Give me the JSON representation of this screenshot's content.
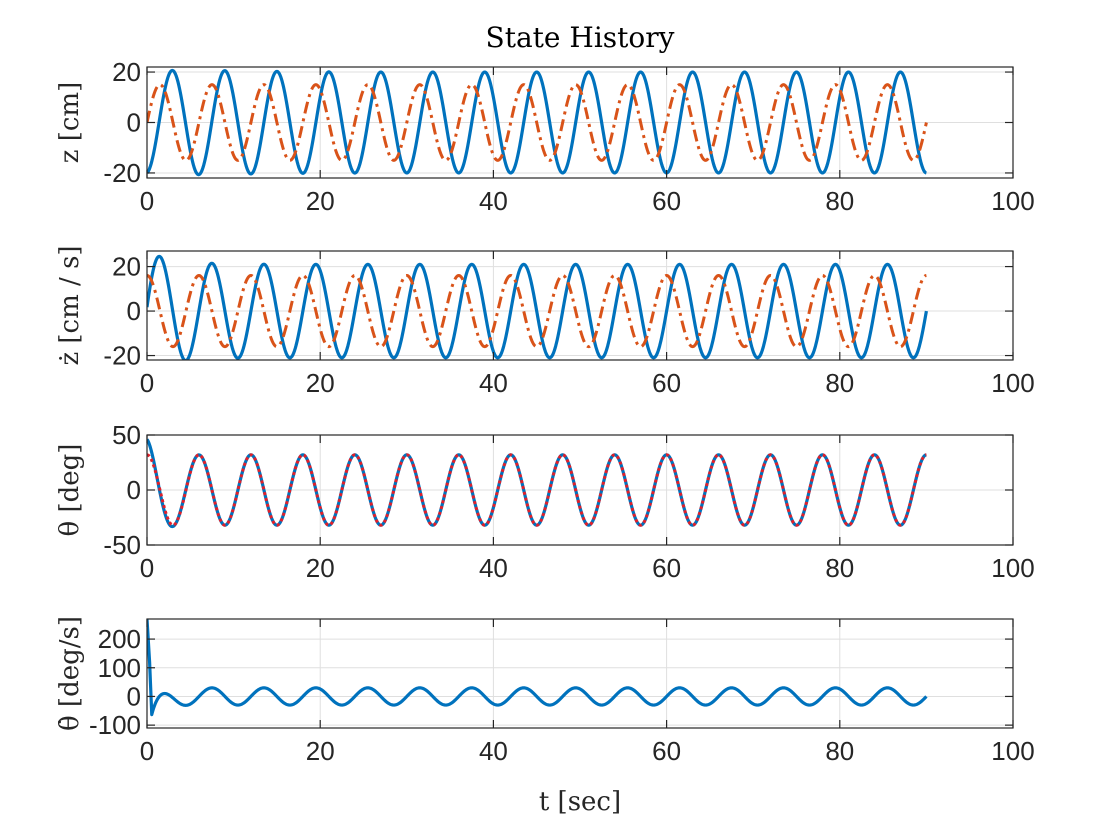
{
  "figure": {
    "title": "State History"
  },
  "chart_data": [
    {
      "type": "line",
      "ylabel": "z [cm]",
      "xlabel": "",
      "xlim": [
        0,
        100
      ],
      "ylim": [
        -22,
        22
      ],
      "xticks": [
        "0",
        "20",
        "40",
        "60",
        "80",
        "100"
      ],
      "yticks": [
        "-20",
        "0",
        "20"
      ],
      "grid": true,
      "series": [
        {
          "key": "actual",
          "color": "#0072BD",
          "style": "solid",
          "amplitude": 20,
          "period": 6.0,
          "phase_deg": -90,
          "t_end": 90,
          "transient": "start -19, peak 22 near t=8"
        },
        {
          "key": "reference",
          "color": "#D95319",
          "style": "dashdot",
          "amplitude": 15,
          "period": 6.0,
          "phase_deg": 0,
          "t_end": 90
        }
      ]
    },
    {
      "type": "line",
      "ylabel": "ż [cm / s]",
      "xlabel": "",
      "xlim": [
        0,
        100
      ],
      "ylim": [
        -22,
        27
      ],
      "xticks": [
        "0",
        "20",
        "40",
        "60",
        "80",
        "100"
      ],
      "yticks": [
        "-20",
        "0",
        "20"
      ],
      "grid": true,
      "series": [
        {
          "key": "actual",
          "color": "#0072BD",
          "style": "solid",
          "amplitude": 21,
          "period": 6.0,
          "phase_deg": 0,
          "t_end": 90,
          "transient": "peak 26 near t=1.5"
        },
        {
          "key": "reference",
          "color": "#D95319",
          "style": "dashdot",
          "amplitude": 16,
          "period": 6.0,
          "phase_deg": 90,
          "t_end": 90
        }
      ]
    },
    {
      "type": "line",
      "ylabel": "θ [deg]",
      "xlabel": "",
      "xlim": [
        0,
        100
      ],
      "ylim": [
        -50,
        50
      ],
      "xticks": [
        "0",
        "20",
        "40",
        "60",
        "80",
        "100"
      ],
      "yticks": [
        "-50",
        "0",
        "50"
      ],
      "grid": true,
      "series": [
        {
          "key": "actual",
          "color": "#0072BD",
          "style": "solid",
          "amplitude": 32,
          "period": 6.0,
          "phase_deg": 90,
          "t_end": 90,
          "transient": "start 45, min -38 near t=2"
        },
        {
          "key": "reference",
          "color": "#E0202A",
          "style": "dotted",
          "amplitude": 32,
          "period": 6.0,
          "phase_deg": 90,
          "t_end": 90
        }
      ]
    },
    {
      "type": "line",
      "ylabel": "θ̇ [deg/s]",
      "xlabel": "t [sec]",
      "xlim": [
        0,
        100
      ],
      "ylim": [
        -110,
        270
      ],
      "xticks": [
        "0",
        "20",
        "40",
        "60",
        "80",
        "100"
      ],
      "yticks": [
        "-100",
        "0",
        "100",
        "200"
      ],
      "grid": true,
      "series": [
        {
          "key": "actual",
          "color": "#0072BD",
          "style": "solid",
          "amplitude": 30,
          "period": 6.0,
          "phase_deg": 0,
          "t_end": 90,
          "transient": "spike to 270 at t=0, dip to -105 near t=1"
        }
      ]
    }
  ]
}
